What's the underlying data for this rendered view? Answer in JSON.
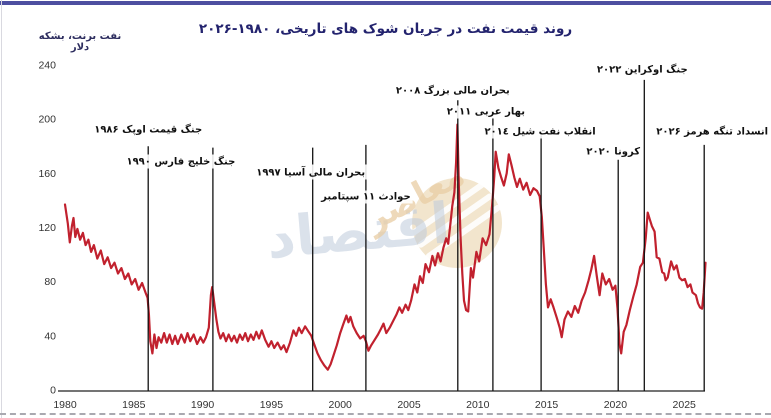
{
  "page": {
    "title": "روند قیمت نفت در جریان شوک های تاریخی، ۱۹۸۰-۲۰۲۶",
    "unit_label": "نفت برنت، بشکه دلار",
    "accent_bar_color": "#4d4fa0"
  },
  "watermark": {
    "circle_color": "#f0e0c4",
    "stripe_color": "#ffffff",
    "word_primary": "اقتصاد",
    "word_primary_color": "#bfcbdc",
    "word_secondary": "معاصر",
    "word_secondary_color": "#e9cda4"
  },
  "chart_data": {
    "type": "line",
    "title": "روند قیمت نفت در جریان شوک های تاریخی، ۱۹۸۰-۲۰۲۶",
    "ylabel": "نفت برنت، بشکه دلار",
    "xlabel": "",
    "x_ticks": [
      1980,
      1985,
      1990,
      1995,
      2000,
      2005,
      2010,
      2015,
      2020,
      2025
    ],
    "y_ticks": [
      0,
      40,
      80,
      120,
      160,
      200,
      240
    ],
    "xlim": [
      1980,
      2026.6
    ],
    "ylim": [
      0,
      240
    ],
    "grid": false,
    "legend": "none",
    "line_color": "#c1212e",
    "axis_color": "#222222",
    "event_line_color": "#111111",
    "events": [
      {
        "year": 1986.05,
        "label": "جنگ قیمت اوپک ۱۹۸۶",
        "line_top_value": 180,
        "label_dx": 0,
        "label_y": 129
      },
      {
        "year": 1990.75,
        "label": "جنگ خلیج فارس ۱۹۹۰",
        "line_top_value": 179,
        "label_dx": -32,
        "label_y": 161
      },
      {
        "year": 1998.0,
        "label": "بحران مالی آسیا ۱۹۹۷",
        "line_top_value": 179,
        "label_dx": -2,
        "label_y": 172
      },
      {
        "year": 2001.87,
        "label": "حوادث ۱۱ سپتامبر",
        "line_top_value": 181,
        "label_dx": 0,
        "label_y": 196
      },
      {
        "year": 2008.55,
        "label": "بحران مالی بزرگ ۲۰۰۸",
        "line_top_value": 214,
        "label_dx": -5,
        "label_y": 90
      },
      {
        "year": 2011.1,
        "label": "بهار عربی ۲۰۱۱",
        "line_top_value": 201,
        "label_dx": -7,
        "label_y": 111
      },
      {
        "year": 2014.6,
        "label": "انقلاب نفت شیل ۲۰۱٤",
        "line_top_value": 188,
        "label_dx": -1,
        "label_y": 131
      },
      {
        "year": 2020.2,
        "label": "کرونا ۲۰۲۰",
        "line_top_value": 170,
        "label_dx": -5,
        "label_y": 151
      },
      {
        "year": 2022.1,
        "label": "جنگ اوکراین ۲۰۲۲",
        "line_top_value": 229,
        "label_dx": -2,
        "label_y": 69
      },
      {
        "year": 2026.45,
        "label": "انسداد تنگه هرمز ۲۰۲۶",
        "line_top_value": 181,
        "label_dx": 8,
        "label_y": 131
      }
    ],
    "series": [
      {
        "name": "Brent",
        "color": "#c1212e",
        "points": [
          [
            1980.0,
            137
          ],
          [
            1980.1,
            130
          ],
          [
            1980.2,
            123
          ],
          [
            1980.35,
            109
          ],
          [
            1980.5,
            121
          ],
          [
            1980.62,
            127
          ],
          [
            1980.75,
            113
          ],
          [
            1980.9,
            119
          ],
          [
            1981.1,
            111
          ],
          [
            1981.3,
            116
          ],
          [
            1981.5,
            107
          ],
          [
            1981.7,
            111
          ],
          [
            1981.9,
            102
          ],
          [
            1982.1,
            107
          ],
          [
            1982.35,
            97
          ],
          [
            1982.6,
            103
          ],
          [
            1982.85,
            93
          ],
          [
            1983.1,
            98
          ],
          [
            1983.35,
            90
          ],
          [
            1983.6,
            94
          ],
          [
            1983.85,
            86
          ],
          [
            1984.1,
            90
          ],
          [
            1984.35,
            82
          ],
          [
            1984.6,
            86
          ],
          [
            1984.85,
            78
          ],
          [
            1985.1,
            82
          ],
          [
            1985.35,
            74
          ],
          [
            1985.6,
            79
          ],
          [
            1985.85,
            72
          ],
          [
            1986.0,
            68
          ],
          [
            1986.1,
            56
          ],
          [
            1986.2,
            36
          ],
          [
            1986.35,
            27
          ],
          [
            1986.5,
            41
          ],
          [
            1986.65,
            31
          ],
          [
            1986.8,
            39
          ],
          [
            1987.0,
            35
          ],
          [
            1987.2,
            42
          ],
          [
            1987.4,
            35
          ],
          [
            1987.6,
            41
          ],
          [
            1987.8,
            34
          ],
          [
            1988.0,
            40
          ],
          [
            1988.2,
            34
          ],
          [
            1988.45,
            41
          ],
          [
            1988.7,
            35
          ],
          [
            1988.9,
            42
          ],
          [
            1989.1,
            36
          ],
          [
            1989.35,
            41
          ],
          [
            1989.6,
            34
          ],
          [
            1989.85,
            39
          ],
          [
            1990.05,
            35
          ],
          [
            1990.25,
            39
          ],
          [
            1990.45,
            46
          ],
          [
            1990.6,
            70
          ],
          [
            1990.7,
            76
          ],
          [
            1990.85,
            64
          ],
          [
            1991.0,
            52
          ],
          [
            1991.15,
            43
          ],
          [
            1991.3,
            38
          ],
          [
            1991.5,
            42
          ],
          [
            1991.7,
            36
          ],
          [
            1991.9,
            41
          ],
          [
            1992.1,
            36
          ],
          [
            1992.3,
            40
          ],
          [
            1992.5,
            35
          ],
          [
            1992.7,
            41
          ],
          [
            1992.9,
            37
          ],
          [
            1993.1,
            42
          ],
          [
            1993.3,
            36
          ],
          [
            1993.5,
            41
          ],
          [
            1993.7,
            37
          ],
          [
            1993.9,
            43
          ],
          [
            1994.1,
            38
          ],
          [
            1994.3,
            44
          ],
          [
            1994.55,
            37
          ],
          [
            1994.8,
            32
          ],
          [
            1995.0,
            36
          ],
          [
            1995.2,
            31
          ],
          [
            1995.45,
            35
          ],
          [
            1995.7,
            30
          ],
          [
            1995.9,
            33
          ],
          [
            1996.1,
            28
          ],
          [
            1996.35,
            35
          ],
          [
            1996.6,
            44
          ],
          [
            1996.8,
            40
          ],
          [
            1997.0,
            46
          ],
          [
            1997.2,
            42
          ],
          [
            1997.45,
            47
          ],
          [
            1997.7,
            43
          ],
          [
            1997.9,
            40
          ],
          [
            1998.1,
            34
          ],
          [
            1998.35,
            27
          ],
          [
            1998.6,
            22
          ],
          [
            1998.85,
            18
          ],
          [
            1999.1,
            15
          ],
          [
            1999.3,
            19
          ],
          [
            1999.5,
            25
          ],
          [
            1999.75,
            33
          ],
          [
            2000.0,
            42
          ],
          [
            2000.2,
            48
          ],
          [
            2000.45,
            55
          ],
          [
            2000.6,
            50
          ],
          [
            2000.75,
            54
          ],
          [
            2000.95,
            47
          ],
          [
            2001.2,
            42
          ],
          [
            2001.45,
            38
          ],
          [
            2001.7,
            40
          ],
          [
            2001.87,
            36
          ],
          [
            2002.05,
            29
          ],
          [
            2002.25,
            33
          ],
          [
            2002.5,
            37
          ],
          [
            2002.75,
            41
          ],
          [
            2002.95,
            45
          ],
          [
            2003.15,
            49
          ],
          [
            2003.35,
            42
          ],
          [
            2003.6,
            46
          ],
          [
            2003.85,
            51
          ],
          [
            2004.1,
            56
          ],
          [
            2004.3,
            61
          ],
          [
            2004.5,
            57
          ],
          [
            2004.75,
            63
          ],
          [
            2004.95,
            59
          ],
          [
            2005.15,
            66
          ],
          [
            2005.4,
            78
          ],
          [
            2005.6,
            72
          ],
          [
            2005.8,
            84
          ],
          [
            2006.0,
            79
          ],
          [
            2006.2,
            93
          ],
          [
            2006.45,
            87
          ],
          [
            2006.7,
            99
          ],
          [
            2006.9,
            92
          ],
          [
            2007.1,
            101
          ],
          [
            2007.3,
            95
          ],
          [
            2007.5,
            105
          ],
          [
            2007.7,
            112
          ],
          [
            2007.85,
            108
          ],
          [
            2008.0,
            122
          ],
          [
            2008.15,
            136
          ],
          [
            2008.3,
            146
          ],
          [
            2008.42,
            168
          ],
          [
            2008.52,
            196
          ],
          [
            2008.62,
            152
          ],
          [
            2008.75,
            112
          ],
          [
            2008.87,
            86
          ],
          [
            2009.0,
            66
          ],
          [
            2009.15,
            59
          ],
          [
            2009.3,
            58
          ],
          [
            2009.5,
            90
          ],
          [
            2009.65,
            83
          ],
          [
            2009.9,
            102
          ],
          [
            2010.1,
            95
          ],
          [
            2010.35,
            112
          ],
          [
            2010.6,
            107
          ],
          [
            2010.85,
            115
          ],
          [
            2011.05,
            137
          ],
          [
            2011.2,
            158
          ],
          [
            2011.3,
            176
          ],
          [
            2011.5,
            164
          ],
          [
            2011.7,
            157
          ],
          [
            2011.9,
            151
          ],
          [
            2012.1,
            160
          ],
          [
            2012.25,
            174
          ],
          [
            2012.45,
            166
          ],
          [
            2012.65,
            157
          ],
          [
            2012.85,
            150
          ],
          [
            2013.05,
            156
          ],
          [
            2013.3,
            148
          ],
          [
            2013.55,
            153
          ],
          [
            2013.8,
            144
          ],
          [
            2014.05,
            149
          ],
          [
            2014.3,
            147
          ],
          [
            2014.5,
            143
          ],
          [
            2014.65,
            128
          ],
          [
            2014.8,
            104
          ],
          [
            2014.95,
            78
          ],
          [
            2015.1,
            61
          ],
          [
            2015.3,
            67
          ],
          [
            2015.5,
            61
          ],
          [
            2015.75,
            53
          ],
          [
            2015.95,
            46
          ],
          [
            2016.1,
            39
          ],
          [
            2016.3,
            52
          ],
          [
            2016.55,
            58
          ],
          [
            2016.8,
            54
          ],
          [
            2017.05,
            62
          ],
          [
            2017.3,
            57
          ],
          [
            2017.55,
            66
          ],
          [
            2017.8,
            72
          ],
          [
            2018.05,
            81
          ],
          [
            2018.25,
            89
          ],
          [
            2018.45,
            99
          ],
          [
            2018.65,
            84
          ],
          [
            2018.85,
            70
          ],
          [
            2019.05,
            86
          ],
          [
            2019.3,
            78
          ],
          [
            2019.55,
            82
          ],
          [
            2019.8,
            74
          ],
          [
            2020.0,
            77
          ],
          [
            2020.15,
            60
          ],
          [
            2020.3,
            34
          ],
          [
            2020.42,
            27
          ],
          [
            2020.6,
            43
          ],
          [
            2020.8,
            48
          ],
          [
            2021.05,
            59
          ],
          [
            2021.3,
            69
          ],
          [
            2021.55,
            78
          ],
          [
            2021.8,
            91
          ],
          [
            2022.0,
            94
          ],
          [
            2022.2,
            112
          ],
          [
            2022.35,
            131
          ],
          [
            2022.5,
            126
          ],
          [
            2022.65,
            121
          ],
          [
            2022.85,
            117
          ],
          [
            2023.0,
            98
          ],
          [
            2023.2,
            97
          ],
          [
            2023.4,
            87
          ],
          [
            2023.55,
            86
          ],
          [
            2023.65,
            81
          ],
          [
            2023.8,
            83
          ],
          [
            2024.05,
            95
          ],
          [
            2024.25,
            89
          ],
          [
            2024.45,
            92
          ],
          [
            2024.65,
            83
          ],
          [
            2024.85,
            81
          ],
          [
            2025.05,
            82
          ],
          [
            2025.25,
            76
          ],
          [
            2025.45,
            78
          ],
          [
            2025.6,
            72
          ],
          [
            2025.85,
            70
          ],
          [
            2026.0,
            64
          ],
          [
            2026.15,
            61
          ],
          [
            2026.3,
            60
          ],
          [
            2026.42,
            72
          ],
          [
            2026.55,
            94
          ]
        ]
      }
    ]
  }
}
